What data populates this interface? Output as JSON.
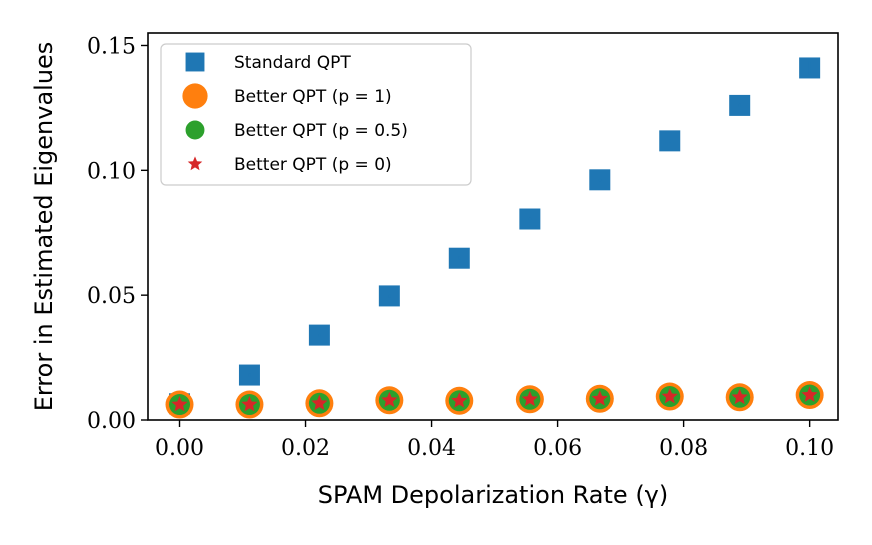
{
  "chart_data": {
    "type": "scatter",
    "xlabel": "SPAM Depolarization Rate (γ)",
    "ylabel": "Error in Estimated Eigenvalues",
    "xlim": [
      -0.005,
      0.1045
    ],
    "ylim": [
      0.0,
      0.155
    ],
    "xticks": [
      0.0,
      0.02,
      0.04,
      0.06,
      0.08,
      0.1
    ],
    "xtick_labels": [
      "0.00",
      "0.02",
      "0.04",
      "0.06",
      "0.08",
      "0.10"
    ],
    "yticks": [
      0.0,
      0.05,
      0.1,
      0.15
    ],
    "ytick_labels": [
      "0.00",
      "0.05",
      "0.10",
      "0.15"
    ],
    "legend_position": "top-left",
    "x": [
      0.0,
      0.0111,
      0.0222,
      0.0333,
      0.0444,
      0.0556,
      0.0667,
      0.0778,
      0.0889,
      0.1
    ],
    "series": [
      {
        "name": "Standard QPT",
        "marker": "square",
        "color": "#1f77b4",
        "values": [
          0.0065,
          0.018,
          0.034,
          0.0497,
          0.0648,
          0.0805,
          0.0962,
          0.1118,
          0.126,
          0.141
        ],
        "errors": [
          0.0005,
          0.0005,
          0.0005,
          0.0005,
          0.0005,
          0.0005,
          0.0005,
          0.0006,
          0.0006,
          0.0025
        ]
      },
      {
        "name": "Better QPT (p = 1)",
        "marker": "circle-large",
        "color": "#ff7f0e",
        "values": [
          0.0062,
          0.0062,
          0.0067,
          0.0079,
          0.0077,
          0.0083,
          0.0085,
          0.0094,
          0.0091,
          0.01
        ]
      },
      {
        "name": "Better QPT (p = 0.5)",
        "marker": "circle",
        "color": "#2ca02c",
        "values": [
          0.0062,
          0.0062,
          0.0067,
          0.0079,
          0.0077,
          0.0083,
          0.0085,
          0.0094,
          0.0091,
          0.01
        ]
      },
      {
        "name": "Better QPT (p = 0)",
        "marker": "star",
        "color": "#d62728",
        "values": [
          0.0062,
          0.0062,
          0.0067,
          0.0079,
          0.0077,
          0.0083,
          0.0085,
          0.0094,
          0.0091,
          0.01
        ]
      }
    ]
  }
}
